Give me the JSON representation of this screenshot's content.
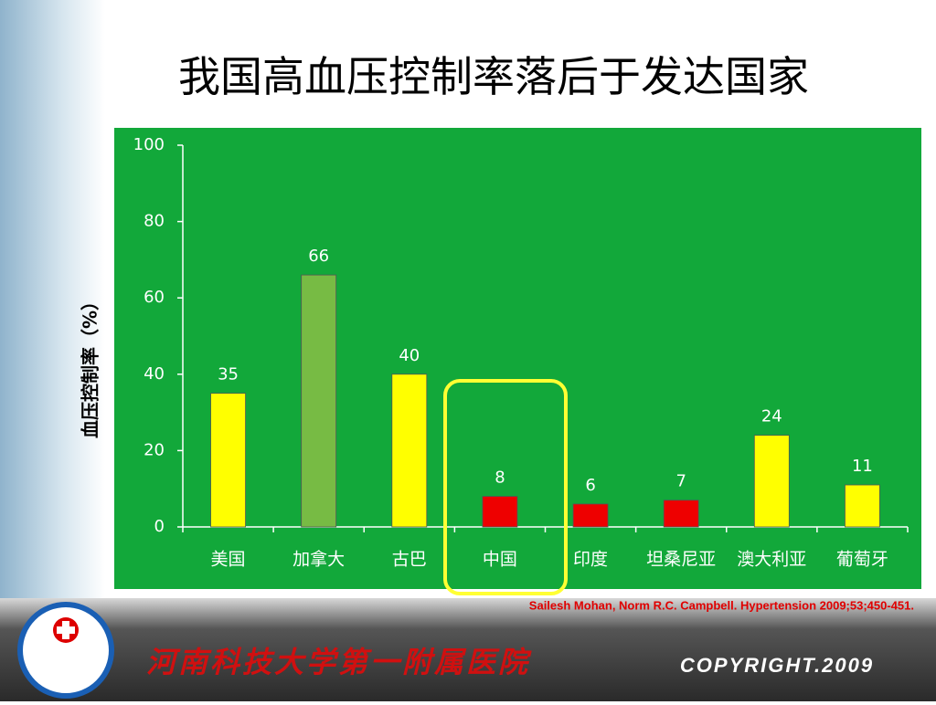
{
  "chart_data": {
    "type": "bar",
    "title": "我国高血压控制率落后于发达国家",
    "y_label": "血压控制率（%）",
    "categories": [
      "美国",
      "加拿大",
      "古巴",
      "中国",
      "印度",
      "坦桑尼亚",
      "澳大利亚",
      "葡萄牙"
    ],
    "values": [
      35,
      66,
      40,
      8,
      6,
      7,
      24,
      11
    ],
    "colors": [
      "#ffff00",
      "#77bb44",
      "#ffff00",
      "#ee0000",
      "#ee0000",
      "#ee0000",
      "#ffff00",
      "#ffff00"
    ],
    "ylim": [
      0,
      100
    ],
    "yticks": [
      0,
      20,
      40,
      60,
      80,
      100
    ],
    "source": "Sailesh Mohan, Norm R.C. Campbell. Hypertension 2009;53;450-451."
  },
  "footer": {
    "institution": "河南科技大学第一附属医院",
    "copyright": "COPYRIGHT.2009"
  }
}
